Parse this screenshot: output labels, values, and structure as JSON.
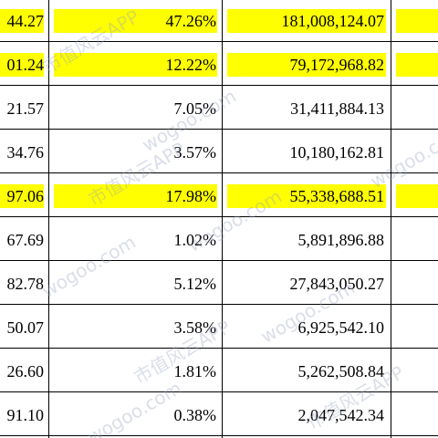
{
  "table": {
    "rows": [
      [
        "44.27",
        "47.26%",
        "181,008,124.07"
      ],
      [
        "01.24",
        "12.22%",
        "79,172,968.82"
      ],
      [
        "21.57",
        "7.05%",
        "31,411,884.13"
      ],
      [
        "34.76",
        "3.57%",
        "10,180,162.81"
      ],
      [
        "97.06",
        "17.98%",
        "55,338,688.51"
      ],
      [
        "67.69",
        "1.02%",
        "5,891,896.88"
      ],
      [
        "82.78",
        "5.12%",
        "27,843,050.27"
      ],
      [
        "50.07",
        "3.58%",
        "6,925,542.10"
      ],
      [
        "26.60",
        "1.81%",
        "5,262,508.84"
      ],
      [
        "91.10",
        "0.38%",
        "2,047,542.34"
      ]
    ],
    "highlight_rows": [
      0,
      1,
      4
    ],
    "highlight_color": "#ffff00"
  },
  "watermark": [
    "市值风云APP",
    "wogoo.com"
  ]
}
